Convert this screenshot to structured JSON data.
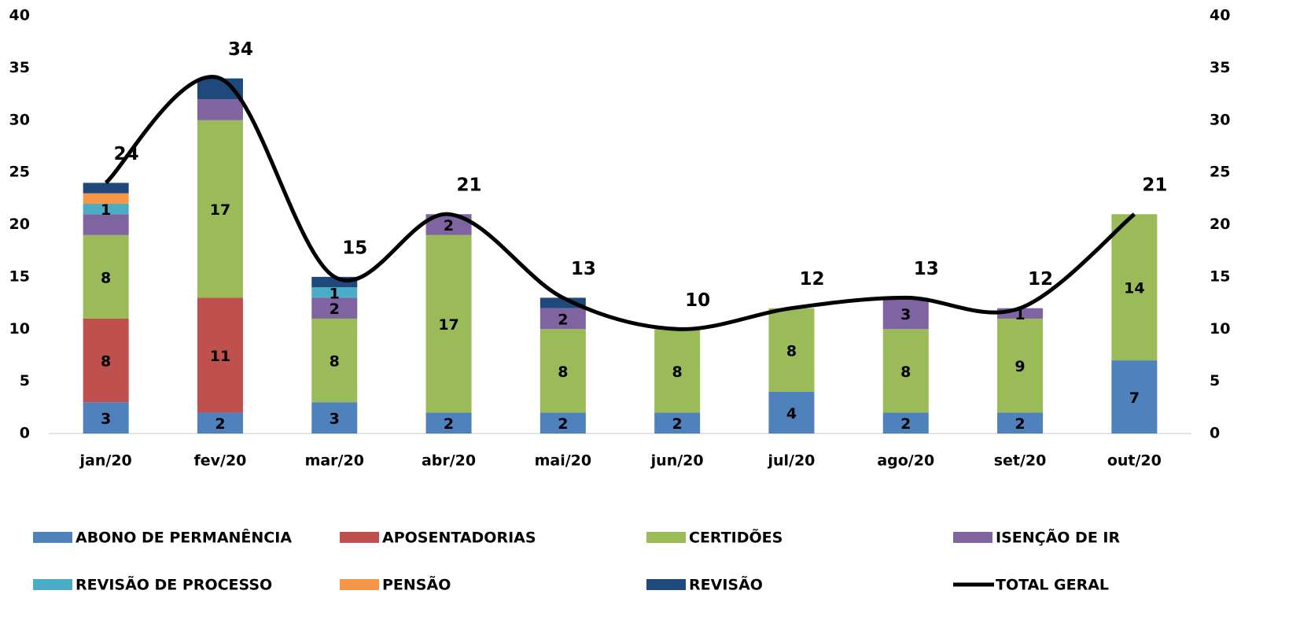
{
  "chart_data": {
    "type": "bar",
    "stacked": true,
    "categories": [
      "jan/20",
      "fev/20",
      "mar/20",
      "abr/20",
      "mai/20",
      "jun/20",
      "jul/20",
      "ago/20",
      "set/20",
      "out/20"
    ],
    "series": [
      {
        "name": "ABONO DE PERMANÊNCIA",
        "color": "#4f81bd",
        "values": [
          3,
          2,
          3,
          2,
          2,
          2,
          4,
          2,
          2,
          7
        ],
        "value_labels": [
          "3",
          "2",
          "3",
          "2",
          "2",
          "2",
          "4",
          "2",
          "2",
          "7"
        ]
      },
      {
        "name": "APOSENTADORIAS",
        "color": "#c0504d",
        "values": [
          8,
          11,
          null,
          null,
          null,
          null,
          null,
          null,
          null,
          null
        ],
        "value_labels": [
          "8",
          "11",
          null,
          null,
          null,
          null,
          null,
          null,
          null,
          null
        ]
      },
      {
        "name": "CERTIDÕES",
        "color": "#9bbb59",
        "values": [
          8,
          17,
          8,
          17,
          8,
          8,
          8,
          8,
          9,
          14
        ],
        "value_labels": [
          "8",
          "17",
          "8",
          "17",
          "8",
          "8",
          "8",
          "8",
          "9",
          "14"
        ]
      },
      {
        "name": "ISENÇÃO DE IR",
        "color": "#8064a2",
        "values": [
          2,
          2,
          2,
          2,
          2,
          null,
          null,
          3,
          1,
          null
        ],
        "value_labels": [
          null,
          null,
          "2",
          "2",
          "2",
          null,
          null,
          "3",
          "1",
          null
        ]
      },
      {
        "name": "REVISÃO DE PROCESSO",
        "color": "#4bacc6",
        "values": [
          1,
          null,
          1,
          null,
          null,
          null,
          null,
          null,
          null,
          null
        ],
        "value_labels": [
          "1",
          null,
          "1",
          null,
          null,
          null,
          null,
          null,
          null,
          null
        ]
      },
      {
        "name": "PENSÃO",
        "color": "#f79646",
        "values": [
          1,
          null,
          null,
          null,
          null,
          null,
          null,
          null,
          null,
          null
        ],
        "value_labels": [
          null,
          null,
          null,
          null,
          null,
          null,
          null,
          null,
          null,
          null
        ]
      },
      {
        "name": "REVISÃO",
        "color": "#1f497d",
        "values": [
          1,
          2,
          1,
          null,
          1,
          null,
          null,
          null,
          null,
          null
        ],
        "value_labels": [
          null,
          null,
          null,
          null,
          null,
          null,
          null,
          null,
          null,
          null
        ]
      },
      {
        "name": "TOTAL GERAL",
        "color": "#000000",
        "type": "line",
        "axis": "y2",
        "smooth": true,
        "values": [
          24,
          34,
          15,
          21,
          13,
          10,
          12,
          13,
          12,
          21
        ]
      }
    ],
    "ylim": [
      0,
      40
    ],
    "yticks": [
      0,
      5,
      10,
      15,
      20,
      25,
      30,
      35,
      40
    ],
    "y2lim": [
      0,
      40
    ],
    "y2ticks": [
      0,
      5,
      10,
      15,
      20,
      25,
      30,
      35,
      40
    ],
    "grid": false,
    "legend": "bottom"
  }
}
